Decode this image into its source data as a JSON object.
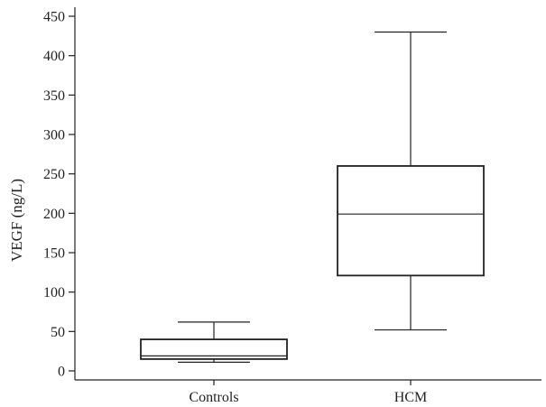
{
  "chart_data": {
    "type": "boxplot",
    "title": "",
    "xlabel": "",
    "ylabel": "VEGF (ng/L)",
    "ylim": [
      0,
      450
    ],
    "yticks": [
      0,
      50,
      100,
      150,
      200,
      250,
      300,
      350,
      400,
      450
    ],
    "grid": false,
    "categories": [
      "Controls",
      "HCM"
    ],
    "boxes": [
      {
        "category": "Controls",
        "whisker_low": 11,
        "q1": 15,
        "median": 19,
        "q3": 40,
        "whisker_high": 62
      },
      {
        "category": "HCM",
        "whisker_low": 52,
        "q1": 121,
        "median": 199,
        "q3": 260,
        "whisker_high": 430
      }
    ],
    "colors": {
      "stroke": "#222222",
      "box_fill": "#ffffff"
    }
  }
}
